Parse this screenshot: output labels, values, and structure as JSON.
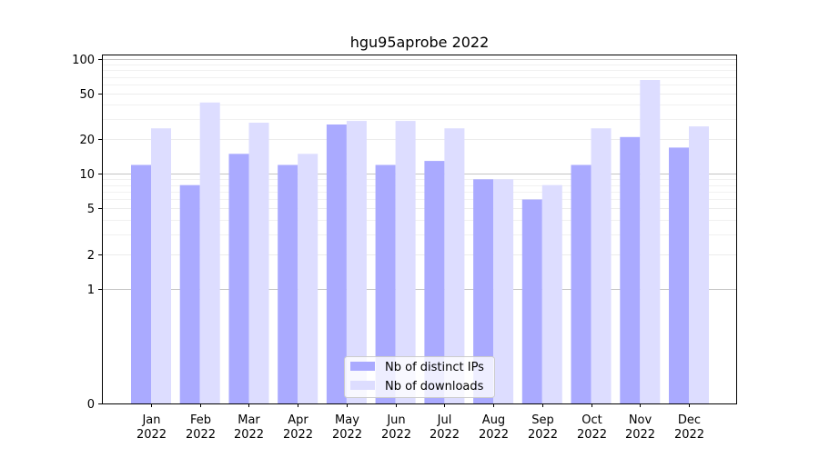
{
  "chart_data": {
    "type": "bar",
    "title": "hgu95aprobe 2022",
    "xlabel": "",
    "ylabel": "",
    "yscale": "symlog",
    "ylim": [
      0,
      110
    ],
    "yticks": [
      0,
      1,
      2,
      5,
      10,
      20,
      50,
      100
    ],
    "ytick_labels": [
      "0",
      "1",
      "2",
      "5",
      "10",
      "20",
      "50",
      "100"
    ],
    "categories": [
      "Jan\n2022",
      "Feb\n2022",
      "Mar\n2022",
      "Apr\n2022",
      "May\n2022",
      "Jun\n2022",
      "Jul\n2022",
      "Aug\n2022",
      "Sep\n2022",
      "Oct\n2022",
      "Nov\n2022",
      "Dec\n2022"
    ],
    "series": [
      {
        "name": "Nb of distinct IPs",
        "color": "#aaaaff",
        "values": [
          12,
          8,
          15,
          12,
          27,
          12,
          13,
          9,
          6,
          12,
          21,
          17
        ]
      },
      {
        "name": "Nb of downloads",
        "color": "#ddddff",
        "values": [
          25,
          42,
          28,
          15,
          29,
          29,
          25,
          9,
          8,
          25,
          66,
          26
        ]
      }
    ],
    "grid": true,
    "legend_position": "bottom-center"
  }
}
